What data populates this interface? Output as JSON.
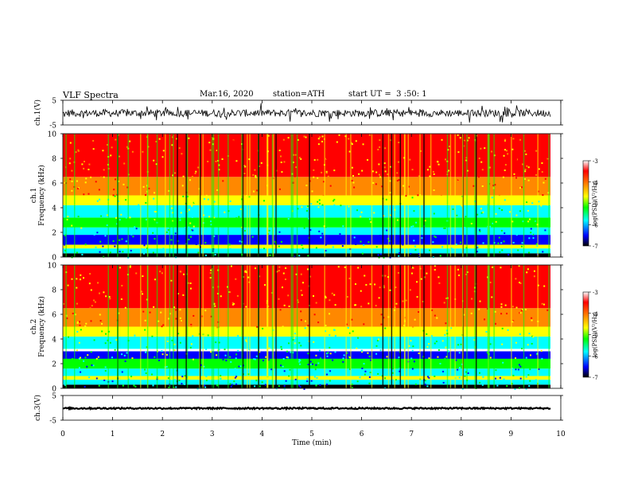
{
  "header": {
    "title": "VLF Spectra",
    "date": "Mar.16, 2020",
    "station": "station=ATH",
    "start": "start UT =  3 :50: 1"
  },
  "chart_data": [
    {
      "type": "line",
      "name": "ch1-waveform",
      "ylabel": "ch.1(V)",
      "ylim": [
        -5,
        5
      ],
      "yticks": [
        "5",
        "-5"
      ],
      "xlim": [
        0,
        10
      ],
      "amplitude_typical": 1.5,
      "offset": -0.2
    },
    {
      "type": "heatmap",
      "name": "ch1-spectrogram",
      "ylabel": "ch.1\nFrequency (kHz)",
      "ylim": [
        0,
        10
      ],
      "yticks": [
        "0",
        "2",
        "4",
        "6",
        "8",
        "10"
      ],
      "xlim": [
        0,
        10
      ],
      "colorbar": {
        "label": "log(PSD)(V²/Hz)",
        "range": [
          -7,
          -3
        ],
        "ticks": [
          "-3",
          "-4",
          "-5",
          "-6",
          "-7"
        ]
      }
    },
    {
      "type": "heatmap",
      "name": "ch2-spectrogram",
      "ylabel": "ch.2\nFrequency (kHz)",
      "ylim": [
        0,
        10
      ],
      "yticks": [
        "0",
        "2",
        "4",
        "6",
        "8",
        "10"
      ],
      "xlim": [
        0,
        10
      ],
      "colorbar": {
        "label": "log(PSD)(V²/Hz)",
        "range": [
          -7,
          -3
        ],
        "ticks": [
          "-3",
          "-4",
          "-5",
          "-6",
          "-7"
        ]
      }
    },
    {
      "type": "line",
      "name": "ch3-waveform",
      "ylabel": "ch.3(V)",
      "ylim": [
        -5,
        5
      ],
      "yticks": [
        "5",
        "-5"
      ],
      "xlim": [
        0,
        10
      ],
      "amplitude_typical": 0.3,
      "offset": -0.2
    }
  ],
  "xaxis": {
    "label": "Time (min)",
    "ticks": [
      "0",
      "1",
      "2",
      "3",
      "4",
      "5",
      "6",
      "7",
      "8",
      "9",
      "10"
    ]
  },
  "colors": {
    "low": "#000000",
    "blue": "#0000ff",
    "cyan": "#00ffff",
    "green": "#00ff00",
    "yellow": "#ffff00",
    "orange": "#ff8800",
    "red": "#ff0000",
    "high": "#ffffff"
  }
}
